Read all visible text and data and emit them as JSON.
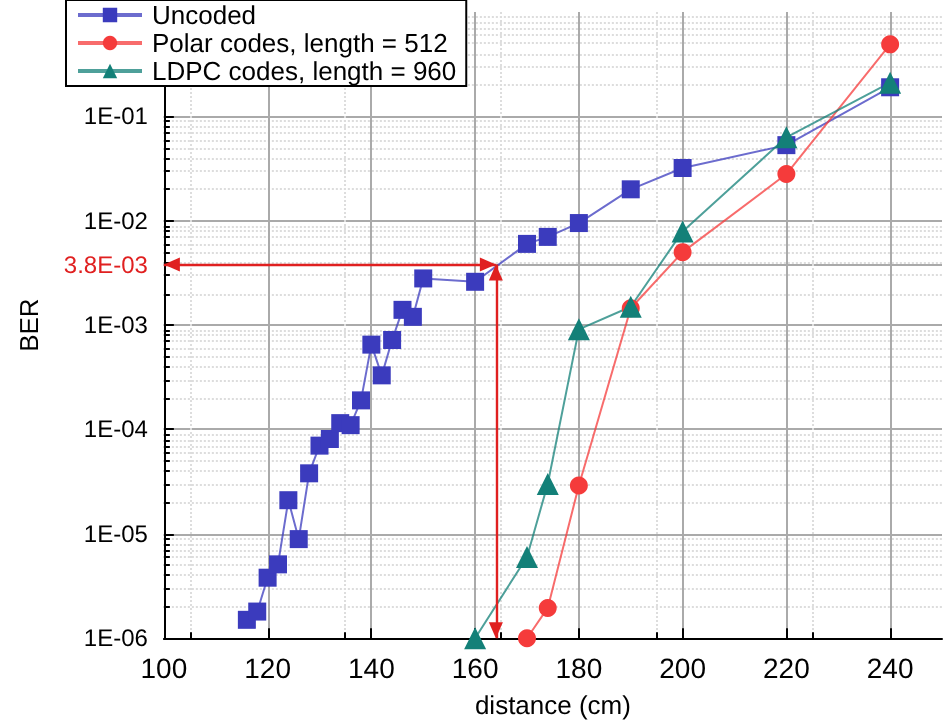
{
  "chart_data": {
    "type": "line",
    "xlabel": "distance (cm)",
    "ylabel": "BER",
    "xlim": [
      100,
      250
    ],
    "xticks": [
      100,
      120,
      140,
      160,
      180,
      200,
      220,
      240
    ],
    "ylim": [
      1e-06,
      1
    ],
    "log": true,
    "yticks": [
      {
        "value": 1e-06,
        "label": "1E-06"
      },
      {
        "value": 1e-05,
        "label": "1E-05"
      },
      {
        "value": 0.0001,
        "label": "1E-04"
      },
      {
        "value": 0.001,
        "label": "1E-03"
      },
      {
        "value": 0.0038,
        "label": "3.8E-03"
      },
      {
        "value": 0.01,
        "label": "1E-02"
      },
      {
        "value": 0.1,
        "label": "1E-01"
      }
    ],
    "grid": true,
    "legend": "top left",
    "series": [
      {
        "name": "Uncoded",
        "color": "#3b3bbd",
        "marker": "square",
        "x": [
          116,
          118,
          120,
          122,
          124,
          126,
          128,
          130,
          132,
          134,
          136,
          138,
          140,
          142,
          144,
          146,
          148,
          150,
          160,
          170,
          174,
          180,
          190,
          200,
          220,
          240
        ],
        "values": [
          1.5e-06,
          1.8e-06,
          3.8e-06,
          5.1e-06,
          2.1e-05,
          8.9e-06,
          3.8e-05,
          7e-05,
          8.1e-05,
          0.000115,
          0.00011,
          0.00019,
          0.00065,
          0.00033,
          0.00072,
          0.0014,
          0.0012,
          0.0028,
          0.0026,
          0.006,
          0.007,
          0.0095,
          0.02,
          0.032,
          0.053,
          0.19
        ]
      },
      {
        "name": "Polar codes, length = 512",
        "color": "#f53b3b",
        "marker": "circle",
        "x": [
          170,
          174,
          180,
          190,
          200,
          220,
          240
        ],
        "values": [
          1e-06,
          1.95e-06,
          2.9e-05,
          0.00145,
          0.005,
          0.028,
          0.49
        ]
      },
      {
        "name": "LDPC codes, length = 960",
        "color": "#138078",
        "marker": "triangle",
        "x": [
          160,
          170,
          174,
          180,
          190,
          200,
          220,
          240
        ],
        "values": [
          1e-06,
          6e-06,
          3e-05,
          0.00091,
          0.0015,
          0.0079,
          0.063,
          0.21
        ]
      }
    ],
    "ref_lines": [
      {
        "axis": "y",
        "value": 0.0038,
        "color": "#e02020"
      },
      {
        "axis": "x",
        "value": 164,
        "color": "#e02020"
      }
    ]
  }
}
